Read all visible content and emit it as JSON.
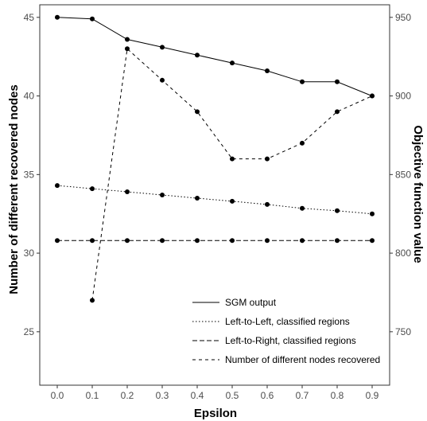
{
  "chart_data": {
    "type": "line",
    "x": [
      0.0,
      0.1,
      0.2,
      0.3,
      0.4,
      0.5,
      0.6,
      0.7,
      0.8,
      0.9
    ],
    "x_tick_labels": [
      "0.0",
      "0.1",
      "0.2",
      "0.3",
      "0.4",
      "0.5",
      "0.6",
      "0.7",
      "0.8",
      "0.9"
    ],
    "xlabel": "Epsilon",
    "ylabel_left": "Number of different recovered nodes",
    "ylabel_right": "Objective function value",
    "ylim_left": [
      21.6,
      45.8
    ],
    "ylim_right": [
      716,
      958
    ],
    "yticks_left": [
      25,
      30,
      35,
      40,
      45
    ],
    "yticks_right": [
      750,
      800,
      850,
      900,
      950
    ],
    "grid": false,
    "legend_position": "bottom-right",
    "series": [
      {
        "name": "SGM output",
        "axis": "right",
        "line_style": "solid",
        "values": [
          950,
          949,
          936,
          931,
          926,
          921,
          916,
          909,
          909,
          900
        ]
      },
      {
        "name": "Left-to-Left, classified regions",
        "axis": "right",
        "line_style": "dotted",
        "values": [
          843,
          841,
          839,
          837,
          835,
          833,
          831,
          828.5,
          827,
          825
        ]
      },
      {
        "name": "Left-to-Right, classified regions",
        "axis": "right",
        "line_style": "dashed-long",
        "values": [
          808,
          808,
          808,
          808,
          808,
          808,
          808,
          808,
          808,
          808
        ]
      },
      {
        "name": "Number of different nodes recovered",
        "axis": "left",
        "line_style": "dashed",
        "x": [
          0.1,
          0.2,
          0.3,
          0.4,
          0.5,
          0.6,
          0.7,
          0.8,
          0.9
        ],
        "values": [
          27,
          43,
          41,
          39,
          36,
          36,
          37,
          39,
          40
        ]
      }
    ]
  }
}
